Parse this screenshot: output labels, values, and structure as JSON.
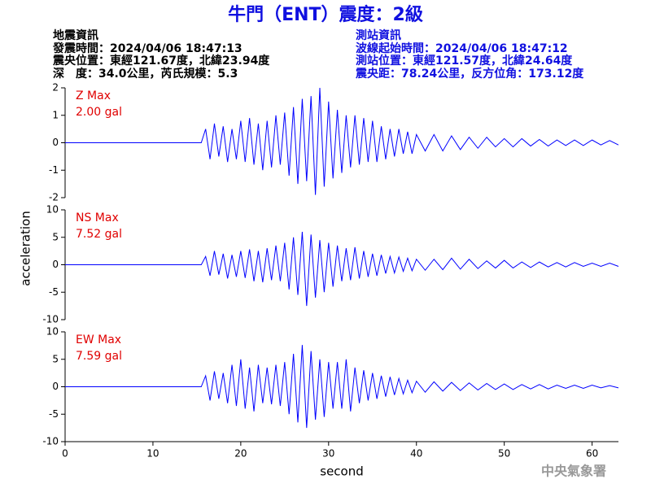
{
  "header": {
    "title": "牛門（ENT）震度：2級",
    "left_info": [
      "地震資訊",
      "發震時間：2024/04/06 18:47:13",
      "震央位置：東經121.67度，北緯23.94度",
      "深　度：34.0公里，芮氏規模：5.3"
    ],
    "right_info": [
      "測站資訊",
      "波線起始時間：2024/04/06 18:47:12",
      "測站位置：東經121.57度，北緯24.64度",
      "震央距：78.24公里，反方位角：173.12度"
    ],
    "credit": "中央氣象署"
  },
  "chart_data": [
    {
      "type": "line",
      "annotation": [
        "Z Max",
        "2.00 gal"
      ],
      "color": "#0000ff",
      "xlim": [
        0,
        63
      ],
      "ylim": [
        -2,
        2
      ],
      "yticks": [
        -2,
        -1,
        0,
        1,
        2
      ],
      "x": [
        0,
        15.5,
        16,
        16.5,
        17,
        17.5,
        18,
        18.5,
        19,
        19.5,
        20,
        20.5,
        21,
        21.5,
        22,
        22.5,
        23,
        23.5,
        24,
        24.5,
        25,
        25.5,
        26,
        26.5,
        27,
        27.5,
        28,
        28.5,
        29,
        29.5,
        30,
        30.5,
        31,
        31.5,
        32,
        32.5,
        33,
        33.5,
        34,
        34.5,
        35,
        35.5,
        36,
        36.5,
        37,
        37.5,
        38,
        38.5,
        39,
        39.5,
        40,
        41,
        42,
        43,
        44,
        45,
        46,
        47,
        48,
        49,
        50,
        51,
        52,
        53,
        54,
        55,
        56,
        57,
        58,
        59,
        60,
        61,
        62,
        63
      ],
      "values": [
        0,
        0,
        0.5,
        -0.6,
        0.7,
        -0.5,
        0.6,
        -0.7,
        0.5,
        -0.6,
        0.8,
        -0.7,
        0.9,
        -0.8,
        0.7,
        -1.0,
        0.8,
        -0.9,
        1.0,
        -0.8,
        1.1,
        -1.2,
        1.3,
        -1.5,
        1.6,
        -1.4,
        1.7,
        -1.9,
        2.0,
        -1.6,
        1.5,
        -1.3,
        1.2,
        -1.1,
        1.0,
        -0.9,
        1.0,
        -0.8,
        0.9,
        -0.7,
        0.8,
        -0.7,
        0.6,
        -0.6,
        0.5,
        -0.5,
        0.5,
        -0.4,
        0.4,
        -0.4,
        0.3,
        -0.3,
        0.3,
        -0.3,
        0.25,
        -0.25,
        0.2,
        -0.2,
        0.2,
        -0.15,
        0.15,
        -0.15,
        0.15,
        -0.12,
        0.12,
        -0.12,
        0.1,
        -0.1,
        0.1,
        -0.1,
        0.1,
        -0.08,
        0.08,
        -0.08
      ]
    },
    {
      "type": "line",
      "annotation": [
        "NS Max",
        "7.52 gal"
      ],
      "color": "#0000ff",
      "ylabel": "acceleration",
      "xlim": [
        0,
        63
      ],
      "ylim": [
        -10,
        10
      ],
      "yticks": [
        -10,
        -5,
        0,
        5,
        10
      ],
      "x": [
        0,
        15.5,
        16,
        16.5,
        17,
        17.5,
        18,
        18.5,
        19,
        19.5,
        20,
        20.5,
        21,
        21.5,
        22,
        22.5,
        23,
        23.5,
        24,
        24.5,
        25,
        25.5,
        26,
        26.5,
        27,
        27.5,
        28,
        28.5,
        29,
        29.5,
        30,
        30.5,
        31,
        31.5,
        32,
        32.5,
        33,
        33.5,
        34,
        34.5,
        35,
        35.5,
        36,
        36.5,
        37,
        37.5,
        38,
        38.5,
        39,
        39.5,
        40,
        41,
        42,
        43,
        44,
        45,
        46,
        47,
        48,
        49,
        50,
        51,
        52,
        53,
        54,
        55,
        56,
        57,
        58,
        59,
        60,
        61,
        62,
        63
      ],
      "values": [
        0,
        0,
        1.5,
        -2,
        2.5,
        -1.8,
        2,
        -2.5,
        1.8,
        -2.2,
        2.5,
        -2.4,
        2.8,
        -3,
        2.5,
        -3.2,
        3,
        -2.8,
        3.5,
        -3,
        4,
        -4.5,
        5,
        -5.5,
        6,
        -7.5,
        5.5,
        -6,
        4.5,
        -5,
        4,
        -4,
        3.5,
        -3,
        3,
        -2.8,
        3.2,
        -2.5,
        2.5,
        -2.2,
        2,
        -2,
        1.8,
        -1.6,
        1.5,
        -1.5,
        1.4,
        -1.2,
        1.2,
        -1.1,
        1.0,
        -1,
        1,
        -0.9,
        1.2,
        -0.8,
        1,
        -0.7,
        0.7,
        -0.6,
        0.8,
        -0.6,
        0.5,
        -0.5,
        0.5,
        -0.4,
        0.4,
        -0.4,
        0.4,
        -0.3,
        0.3,
        -0.3,
        0.3,
        -0.3
      ]
    },
    {
      "type": "line",
      "annotation": [
        "EW Max",
        "7.59 gal"
      ],
      "color": "#0000ff",
      "xlabel": "second",
      "xlim": [
        0,
        63
      ],
      "xticks": [
        0,
        10,
        20,
        30,
        40,
        50,
        60
      ],
      "ylim": [
        -10,
        10
      ],
      "yticks": [
        -10,
        -5,
        0,
        5,
        10
      ],
      "x": [
        0,
        15.5,
        16,
        16.5,
        17,
        17.5,
        18,
        18.5,
        19,
        19.5,
        20,
        20.5,
        21,
        21.5,
        22,
        22.5,
        23,
        23.5,
        24,
        24.5,
        25,
        25.5,
        26,
        26.5,
        27,
        27.5,
        28,
        28.5,
        29,
        29.5,
        30,
        30.5,
        31,
        31.5,
        32,
        32.5,
        33,
        33.5,
        34,
        34.5,
        35,
        35.5,
        36,
        36.5,
        37,
        37.5,
        38,
        38.5,
        39,
        39.5,
        40,
        41,
        42,
        43,
        44,
        45,
        46,
        47,
        48,
        49,
        50,
        51,
        52,
        53,
        54,
        55,
        56,
        57,
        58,
        59,
        60,
        61,
        62,
        63
      ],
      "values": [
        0,
        0,
        2,
        -2.5,
        2.8,
        -2.2,
        2.5,
        -3,
        4,
        -3.5,
        5,
        -4,
        3.5,
        -4.5,
        4,
        -3,
        3.5,
        -3.2,
        4,
        -3.5,
        4.5,
        -5,
        6,
        -6.5,
        7.6,
        -7.5,
        6.5,
        -6,
        5,
        -5.5,
        4.5,
        -4,
        4.5,
        -4,
        5,
        -4.5,
        3.5,
        -3,
        3,
        -2.5,
        2.5,
        -2.2,
        2,
        -1.8,
        1.8,
        -1.5,
        1.5,
        -1.3,
        1.2,
        -1.1,
        1.0,
        -1,
        0.9,
        -0.8,
        0.8,
        -0.7,
        0.7,
        -0.6,
        0.6,
        -0.5,
        0.5,
        -0.5,
        0.4,
        -0.4,
        0.4,
        -0.4,
        0.3,
        -0.3,
        0.3,
        -0.3,
        0.3,
        -0.2,
        0.2,
        -0.2
      ]
    }
  ]
}
